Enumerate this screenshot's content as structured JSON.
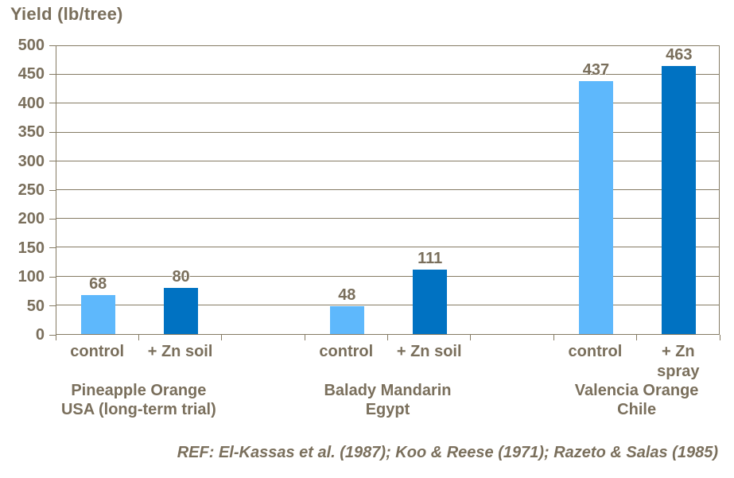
{
  "chart_data": {
    "type": "bar",
    "title": "Yield (lb/tree)",
    "ylabel": "Yield (lb/tree)",
    "xlabel": "",
    "ylim": [
      0,
      500
    ],
    "yticks": [
      0,
      50,
      100,
      150,
      200,
      250,
      300,
      350,
      400,
      450,
      500
    ],
    "grid": true,
    "legend": "none",
    "groups": [
      {
        "label": "Pineapple Orange\nUSA (long-term trial)",
        "bars": [
          {
            "category": "control",
            "value": 68,
            "series": "control"
          },
          {
            "category": "+ Zn soil",
            "value": 80,
            "series": "zinc"
          }
        ]
      },
      {
        "label": "Balady Mandarin\nEgypt",
        "bars": [
          {
            "category": "control",
            "value": 48,
            "series": "control"
          },
          {
            "category": "+ Zn soil",
            "value": 111,
            "series": "zinc"
          }
        ]
      },
      {
        "label": "Valencia Orange\nChile",
        "bars": [
          {
            "category": "control",
            "value": 437,
            "series": "control"
          },
          {
            "category": "+ Zn\nspray",
            "value": 463,
            "series": "zinc"
          }
        ]
      }
    ],
    "reference": "REF: El-Kassas et al. (1987); Koo & Reese (1971); Razeto & Salas (1985)"
  },
  "colors": {
    "bar_control": "#5EB8FC",
    "bar_zinc": "#0072C2",
    "text": "#7A6F5C",
    "grid": "#857B64"
  }
}
